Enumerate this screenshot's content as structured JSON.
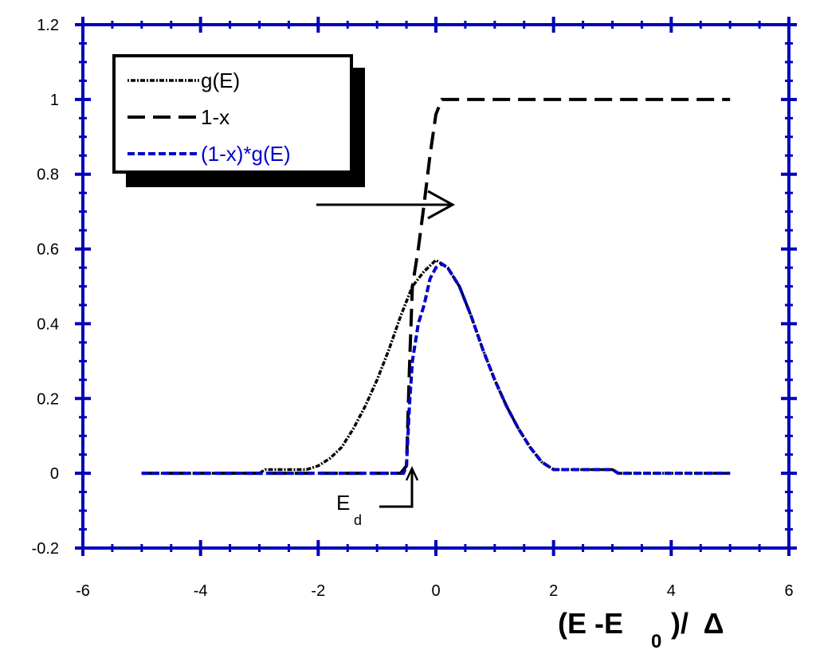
{
  "chart_data": {
    "type": "line",
    "xlabel": {
      "main": "(E -E",
      "sub": "0",
      "rest": ")/  Δ"
    },
    "annotation": {
      "main": "E",
      "sub": "d"
    },
    "xlim": [
      -6,
      6
    ],
    "xticks": [
      -6,
      -4,
      -2,
      0,
      2,
      4,
      6
    ],
    "ylim": [
      -0.2,
      1.2
    ],
    "yticks": [
      -0.2,
      0,
      0.2,
      0.4,
      0.6,
      0.8,
      1,
      1.2
    ],
    "axis_color": "#0000bb",
    "legend": "upper left",
    "series": [
      {
        "name": "g(E)",
        "color": "#000000",
        "x": [
          -5,
          -4,
          -3,
          -2.9,
          -2.5,
          -2.2,
          -2,
          -1.8,
          -1.6,
          -1.4,
          -1.2,
          -1,
          -0.8,
          -0.6,
          -0.4,
          -0.2,
          0,
          0.2,
          0.4,
          0.6,
          0.8,
          1,
          1.2,
          1.4,
          1.6,
          1.8,
          2,
          2.5,
          3,
          3.1,
          4,
          5
        ],
        "values": [
          0,
          0,
          0,
          0.01,
          0.01,
          0.01,
          0.02,
          0.04,
          0.07,
          0.12,
          0.18,
          0.25,
          0.33,
          0.42,
          0.5,
          0.54,
          0.57,
          0.55,
          0.5,
          0.42,
          0.33,
          0.25,
          0.18,
          0.12,
          0.07,
          0.03,
          0.01,
          0.01,
          0.01,
          0,
          0,
          0
        ]
      },
      {
        "name": "1-x",
        "color": "#000000",
        "x": [
          -5,
          -3,
          -1,
          -0.6,
          -0.5,
          -0.45,
          -0.4,
          -0.3,
          -0.2,
          -0.1,
          0,
          0.1,
          1,
          3,
          5
        ],
        "values": [
          0,
          0,
          0,
          0,
          0.02,
          0.28,
          0.5,
          0.6,
          0.72,
          0.85,
          0.96,
          1,
          1,
          1,
          1
        ]
      },
      {
        "name": "(1-x)*g(E)",
        "color": "#0000cc",
        "x": [
          -5,
          -3,
          -1,
          -0.55,
          -0.5,
          -0.45,
          -0.4,
          -0.3,
          -0.2,
          -0.1,
          0,
          0.1,
          0.2,
          0.4,
          0.6,
          0.8,
          1,
          1.2,
          1.4,
          1.6,
          1.8,
          2,
          2.5,
          3,
          3.1,
          4,
          5
        ],
        "values": [
          0,
          0,
          0,
          0,
          0.02,
          0.18,
          0.3,
          0.4,
          0.45,
          0.52,
          0.55,
          0.56,
          0.55,
          0.5,
          0.42,
          0.33,
          0.25,
          0.18,
          0.12,
          0.07,
          0.03,
          0.01,
          0.01,
          0.01,
          0,
          0,
          0
        ]
      }
    ]
  }
}
